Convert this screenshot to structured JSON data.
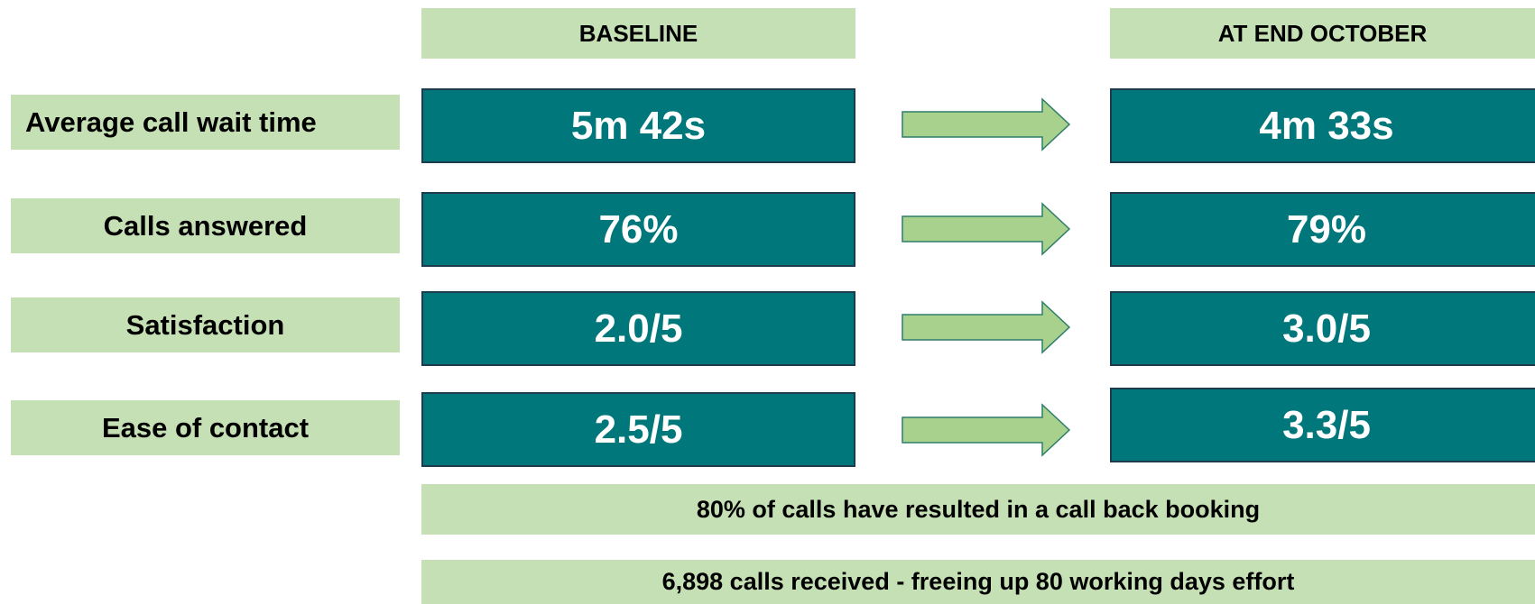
{
  "headers": {
    "baseline": "BASELINE",
    "end_october": "AT END OCTOBER"
  },
  "rows": [
    {
      "label": "Average call wait time",
      "baseline": "5m 42s",
      "end_october": "4m 33s"
    },
    {
      "label": "Calls answered",
      "baseline": "76%",
      "end_october": "79%"
    },
    {
      "label": "Satisfaction",
      "baseline": "2.0/5",
      "end_october": "3.0/5"
    },
    {
      "label": "Ease of contact",
      "baseline": "2.5/5",
      "end_october": "3.3/5"
    }
  ],
  "notes": [
    "80% of calls have resulted in a call back booking",
    "6,898 calls received - freeing up 80 working days effort"
  ]
}
